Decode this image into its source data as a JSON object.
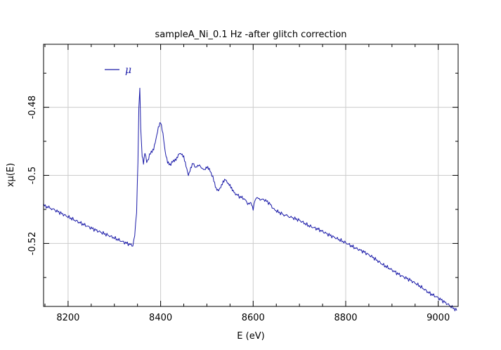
{
  "chart_data": {
    "type": "line",
    "title": "sampleA_Ni_0.1 Hz -after glitch correction",
    "xlabel": "E (eV)",
    "ylabel": "xμ(E)",
    "xlim": [
      8147,
      9043
    ],
    "ylim": [
      -0.5385,
      -0.4615
    ],
    "x_ticks": [
      8200,
      8400,
      8600,
      8800,
      9000
    ],
    "y_ticks": [
      -0.52,
      -0.5,
      -0.48
    ],
    "x_tick_labels": [
      "8200",
      "8400",
      "8600",
      "8800",
      "9000"
    ],
    "y_tick_labels": [
      "-0.52",
      "-0.5",
      "-0.48"
    ],
    "grid": true,
    "legend_position": "top-left",
    "series": [
      {
        "name": "μ",
        "color": "#1a1aa8",
        "x": [
          8147,
          8170,
          8200,
          8230,
          8260,
          8290,
          8320,
          8340,
          8344,
          8348,
          8351,
          8353,
          8355,
          8357,
          8360,
          8363,
          8366,
          8370,
          8374,
          8378,
          8385,
          8390,
          8395,
          8400,
          8405,
          8410,
          8415,
          8420,
          8428,
          8435,
          8440,
          8445,
          8450,
          8455,
          8460,
          8465,
          8470,
          8475,
          8480,
          8488,
          8495,
          8500,
          8507,
          8515,
          8520,
          8525,
          8530,
          8535,
          8540,
          8545,
          8550,
          8555,
          8560,
          8570,
          8580,
          8590,
          8595,
          8600,
          8602,
          8604,
          8608,
          8615,
          8625,
          8635,
          8645,
          8655,
          8665,
          8680,
          8700,
          8720,
          8740,
          8760,
          8780,
          8800,
          8820,
          8840,
          8860,
          8870,
          8880,
          8900,
          8920,
          8940,
          8960,
          8980,
          9000,
          9020,
          9040
        ],
        "y": [
          -0.5088,
          -0.5101,
          -0.5122,
          -0.5142,
          -0.5161,
          -0.5178,
          -0.5196,
          -0.5206,
          -0.5178,
          -0.5105,
          -0.496,
          -0.4802,
          -0.4745,
          -0.4865,
          -0.4945,
          -0.4966,
          -0.4935,
          -0.496,
          -0.495,
          -0.4935,
          -0.492,
          -0.4892,
          -0.486,
          -0.4845,
          -0.488,
          -0.4935,
          -0.4962,
          -0.4968,
          -0.4958,
          -0.4948,
          -0.4935,
          -0.4938,
          -0.4948,
          -0.4975,
          -0.5002,
          -0.498,
          -0.4962,
          -0.4975,
          -0.497,
          -0.4975,
          -0.4985,
          -0.4978,
          -0.4985,
          -0.5015,
          -0.5038,
          -0.5042,
          -0.5032,
          -0.5018,
          -0.5012,
          -0.5025,
          -0.5032,
          -0.5045,
          -0.5052,
          -0.5062,
          -0.5068,
          -0.5085,
          -0.5082,
          -0.5102,
          -0.5085,
          -0.507,
          -0.5068,
          -0.507,
          -0.5072,
          -0.5082,
          -0.51,
          -0.5108,
          -0.5115,
          -0.5122,
          -0.5132,
          -0.5148,
          -0.5158,
          -0.5172,
          -0.5185,
          -0.5198,
          -0.5213,
          -0.5225,
          -0.5242,
          -0.5252,
          -0.5262,
          -0.5278,
          -0.5295,
          -0.5308,
          -0.5325,
          -0.5345,
          -0.536,
          -0.5378,
          -0.5397
        ]
      }
    ]
  }
}
